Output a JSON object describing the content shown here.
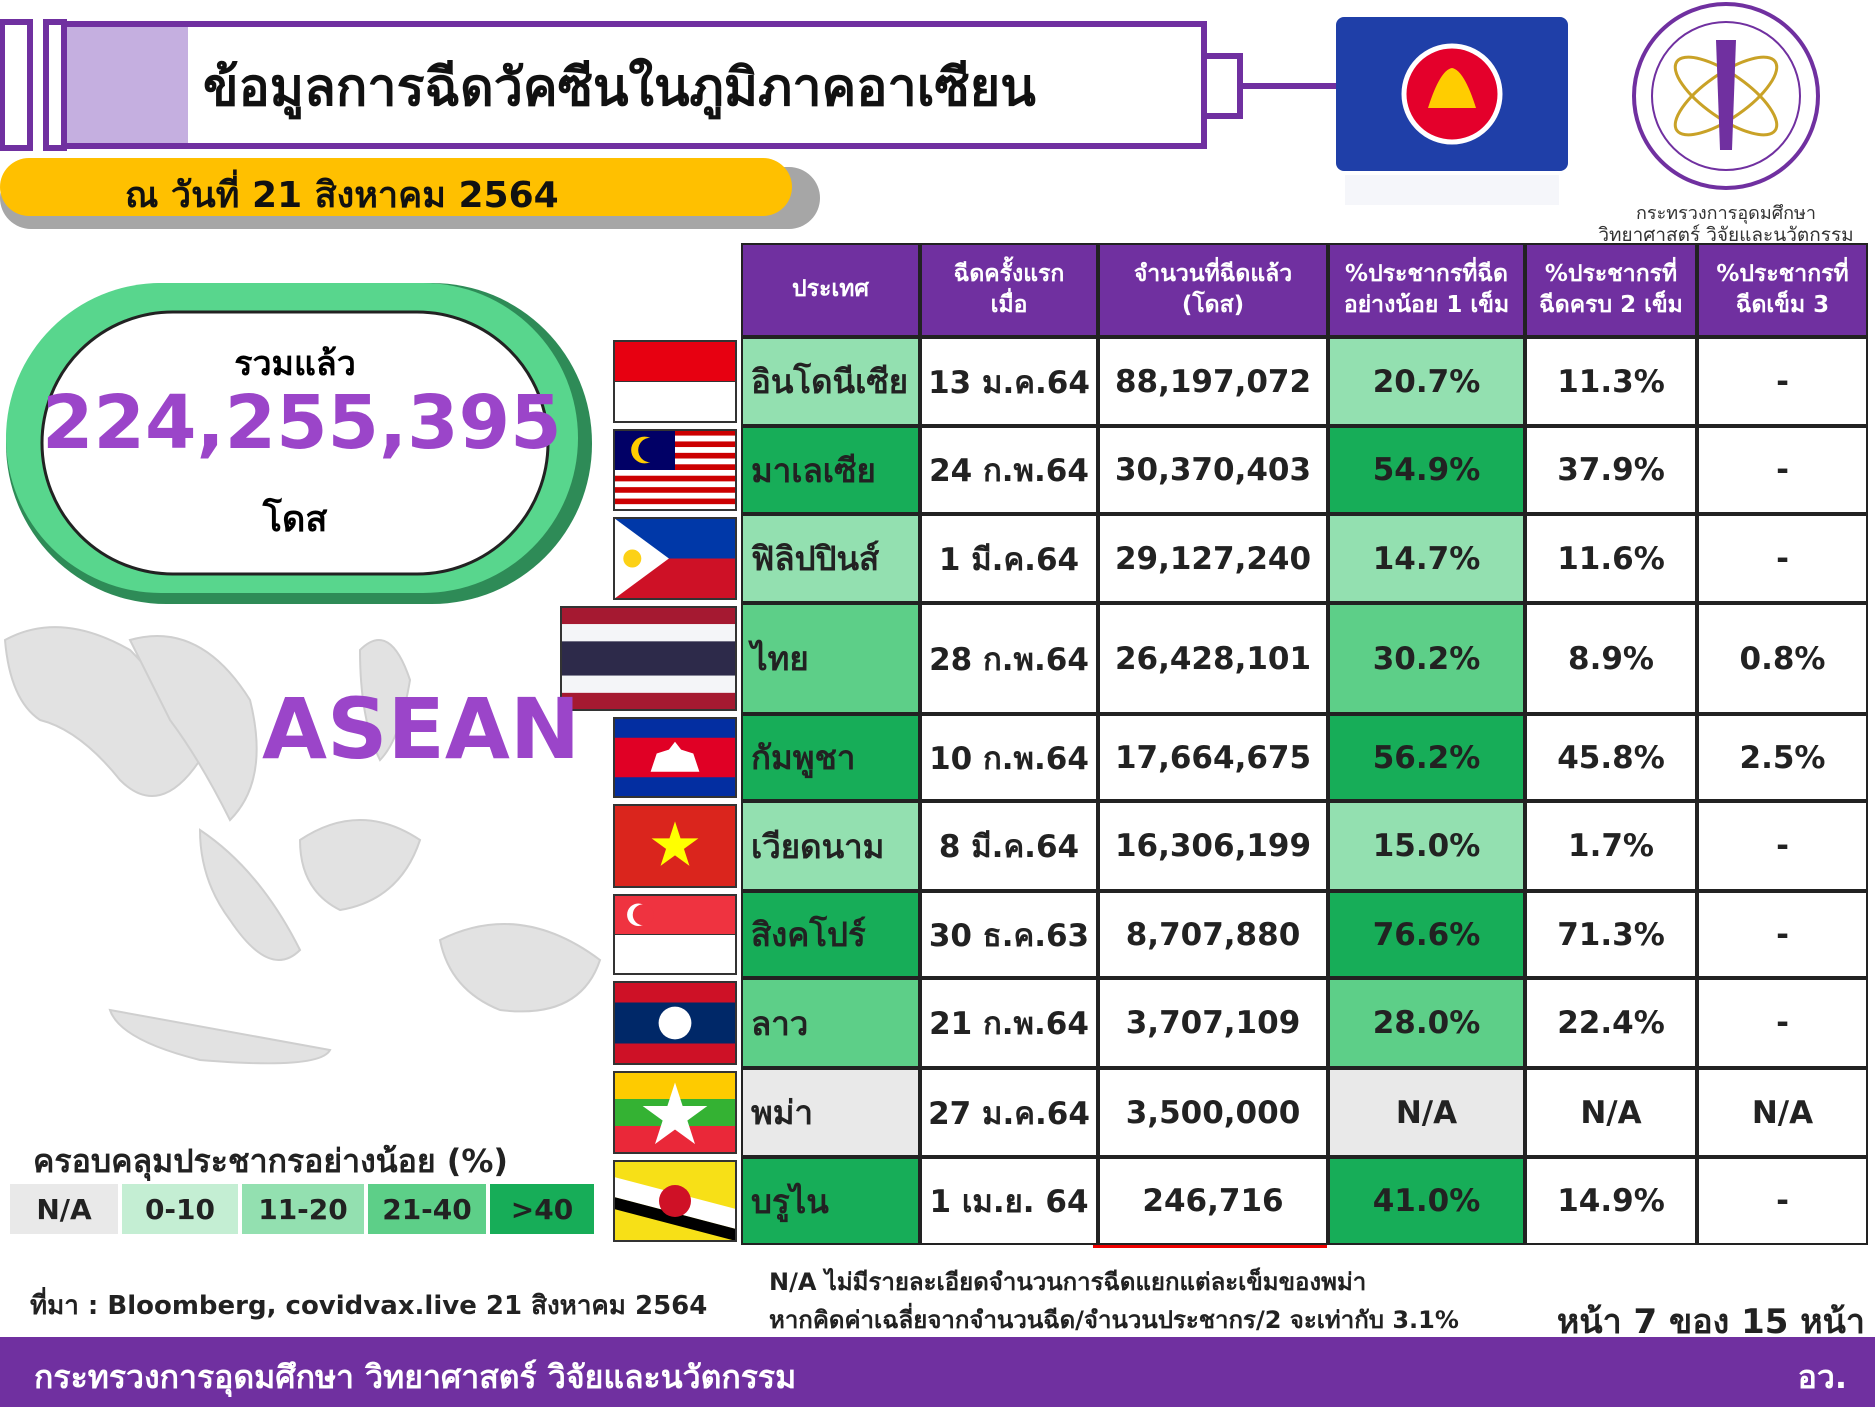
{
  "header": {
    "title": "ข้อมูลการฉีดวัคซีนในภูมิภาคอาเซียน",
    "date": "ณ วันที่ 21 สิงหาคม 2564"
  },
  "logo": {
    "lines": [
      "กระทรวงการอุดมศึกษา",
      "วิทยาศาสตร์ วิจัยและนวัตกรรม"
    ]
  },
  "total": {
    "label": "รวมแล้ว",
    "value": "224,255,395",
    "unit": "โดส"
  },
  "map": {
    "label": "ASEAN"
  },
  "legend": {
    "title": "ครอบคลุมประชากรอย่างน้อย (%)",
    "items": [
      {
        "label": "N/A",
        "color": "#e9e9e9"
      },
      {
        "label": "0-10",
        "color": "#c4eed3"
      },
      {
        "label": "11-20",
        "color": "#93e0b0"
      },
      {
        "label": "21-40",
        "color": "#5dcf88"
      },
      {
        "label": ">40",
        "color": "#17ad58"
      }
    ]
  },
  "table": {
    "header": [
      [
        "ประเทศ"
      ],
      [
        "ฉีดครั้งแรก",
        "เมื่อ"
      ],
      [
        "จำนวนที่ฉีดแล้ว",
        "(โดส)"
      ],
      [
        "%ประชากรที่ฉีด",
        "อย่างน้อย 1 เข็ม"
      ],
      [
        "%ประชากรที่",
        "ฉีดครบ 2 เข็ม"
      ],
      [
        "%ประชากรที่",
        "ฉีดเข็ม 3"
      ]
    ],
    "rows": [
      {
        "cells": [
          "อินโดนีเซีย",
          "13 ม.ค.64",
          "88,197,072",
          "20.7%",
          "11.3%",
          "-"
        ],
        "color": "#93e0b0"
      },
      {
        "cells": [
          "มาเลเซีย",
          "24 ก.พ.64",
          "30,370,403",
          "54.9%",
          "37.9%",
          "-"
        ],
        "color": "#17ad58"
      },
      {
        "cells": [
          "ฟิลิปปินส์",
          "1 มี.ค.64",
          "29,127,240",
          "14.7%",
          "11.6%",
          "-"
        ],
        "color": "#93e0b0"
      },
      {
        "cells": [
          "ไทย",
          "28 ก.พ.64",
          "26,428,101",
          "30.2%",
          "8.9%",
          "0.8%"
        ],
        "color": "#5dcf88"
      },
      {
        "cells": [
          "กัมพูชา",
          "10 ก.พ.64",
          "17,664,675",
          "56.2%",
          "45.8%",
          "2.5%"
        ],
        "color": "#17ad58"
      },
      {
        "cells": [
          "เวียดนาม",
          "8 มี.ค.64",
          "16,306,199",
          "15.0%",
          "1.7%",
          "-"
        ],
        "color": "#93e0b0"
      },
      {
        "cells": [
          "สิงคโปร์",
          "30 ธ.ค.63",
          "8,707,880",
          "76.6%",
          "71.3%",
          "-"
        ],
        "color": "#17ad58"
      },
      {
        "cells": [
          "ลาว",
          "21 ก.พ.64",
          "3,707,109",
          "28.0%",
          "22.4%",
          "-"
        ],
        "color": "#5dcf88"
      },
      {
        "cells": [
          "พม่า",
          "27 ม.ค.64",
          "3,500,000",
          "N/A",
          "N/A",
          "N/A"
        ],
        "color": "#e9e9e9"
      },
      {
        "cells": [
          "บรูไน",
          "1 เม.ย. 64",
          "246,716",
          "41.0%",
          "14.9%",
          "-"
        ],
        "color": "#17ad58"
      }
    ]
  },
  "notes": [
    "N/A ไม่มีรายละเอียดจำนวนการฉีดแยกแต่ละเข็มของพม่า",
    "หากคิดค่าเฉลี่ยจากจำนวนฉีด/จำนวนประชากร/2 จะเท่ากับ 3.1%"
  ],
  "source": "ที่มา : Bloomberg, covidvax.live 21 สิงหาคม 2564",
  "page": "หน้า 7 ของ 15 หน้า",
  "footer": {
    "left": "กระทรวงการอุดมศึกษา วิทยาศาสตร์ วิจัยและนวัตกรรม",
    "right": "อว."
  }
}
